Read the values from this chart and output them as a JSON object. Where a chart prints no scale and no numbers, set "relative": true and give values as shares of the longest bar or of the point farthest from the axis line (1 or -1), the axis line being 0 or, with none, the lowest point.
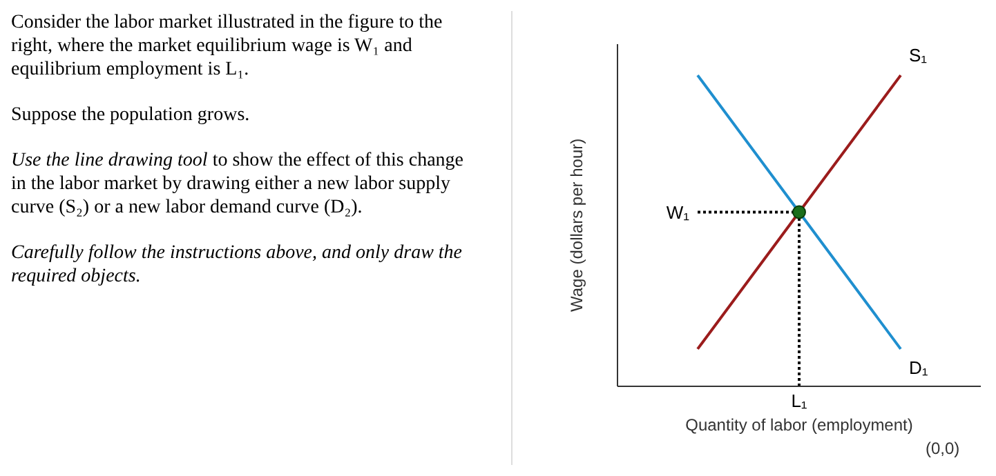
{
  "chart_data": {
    "type": "line",
    "xlabel": "Quantity of labor (employment)",
    "ylabel": "Wage (dollars per hour)",
    "relative": true,
    "categories": [
      null,
      null,
      null
    ],
    "marker": "none",
    "series": [
      {
        "name": "S₁",
        "color": "#9b1c1c",
        "values": [
          0.12,
          0.56,
          1
        ]
      },
      {
        "name": "D₁",
        "color": "#1f8fcf",
        "values": [
          1,
          0.56,
          0.12
        ]
      }
    ],
    "ref_lines": [
      {
        "axis": "y",
        "value": 0.56,
        "label": "W₁",
        "line_style": "dotted",
        "color": "#000000"
      },
      {
        "axis": "x",
        "label": "L₁",
        "line_style": "dotted",
        "color": "#000000"
      }
    ],
    "annotations": [
      "Consider the labor market illustrated in the figure to the right, where the market equilibrium wage is W₁ and equilibrium employment is L₁.",
      "Suppose the population grows.",
      "Use the line drawing tool",
      " to show the effect of this change in the labor market by drawing either a new labor supply curve (S₂) or a new labor demand curve (D₂).",
      "Carefully follow the instructions above, and only draw the required objects.",
      "(0,0)"
    ]
  }
}
